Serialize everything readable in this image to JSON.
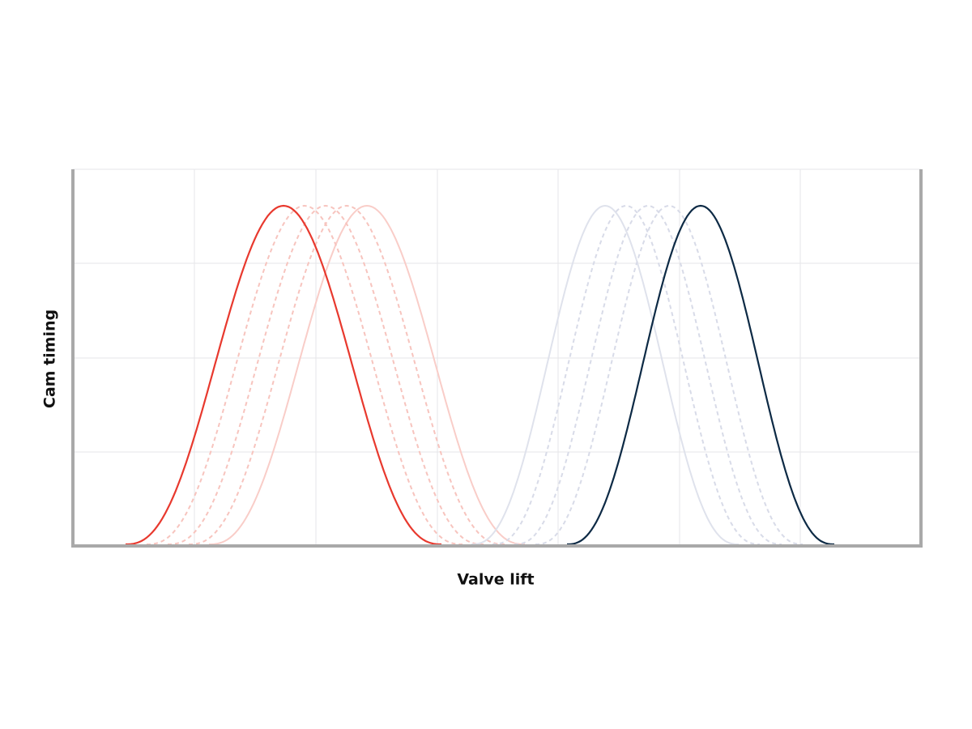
{
  "axes": {
    "x_label": "Valve lift",
    "y_label": "Cam timing"
  }
}
